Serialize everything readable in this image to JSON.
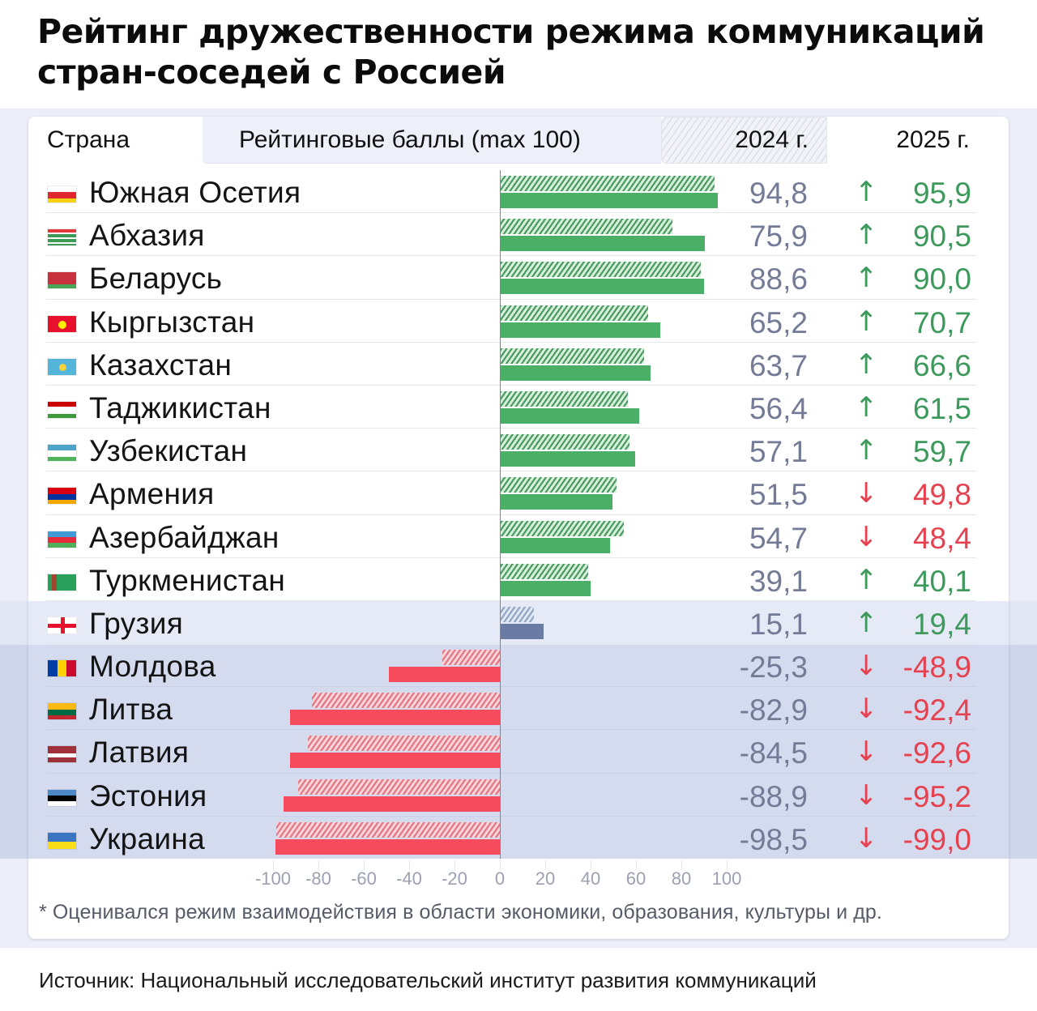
{
  "title": "Рейтинг дружественности режима коммуникаций стран-соседей с Россией",
  "header": {
    "country": "Страна",
    "scores": "Рейтинговые баллы (max 100)",
    "year_2024": "2024 г.",
    "year_2025": "2025 г."
  },
  "colors": {
    "positive": "#4caf68",
    "negative": "#f64b5c",
    "neutral": "#6a7ca3",
    "arrow_up": "#3d9a5c",
    "arrow_down": "#e5414f"
  },
  "rows": [
    {
      "country": "Южная Осетия",
      "flag": "south-ossetia",
      "v2024": "94,8",
      "v2025": "95,9",
      "dir": "↑"
    },
    {
      "country": "Абхазия",
      "flag": "abkhazia",
      "v2024": "75,9",
      "v2025": "90,5",
      "dir": "↑"
    },
    {
      "country": "Беларусь",
      "flag": "belarus",
      "v2024": "88,6",
      "v2025": "90,0",
      "dir": "↑"
    },
    {
      "country": "Кыргызстан",
      "flag": "kyrgyzstan",
      "v2024": "65,2",
      "v2025": "70,7",
      "dir": "↑"
    },
    {
      "country": "Казахстан",
      "flag": "kazakhstan",
      "v2024": "63,7",
      "v2025": "66,6",
      "dir": "↑"
    },
    {
      "country": "Таджикистан",
      "flag": "tajikistan",
      "v2024": "56,4",
      "v2025": "61,5",
      "dir": "↑"
    },
    {
      "country": "Узбекистан",
      "flag": "uzbekistan",
      "v2024": "57,1",
      "v2025": "59,7",
      "dir": "↑"
    },
    {
      "country": "Армения",
      "flag": "armenia",
      "v2024": "51,5",
      "v2025": "49,8",
      "dir": "↓"
    },
    {
      "country": "Азербайджан",
      "flag": "azerbaijan",
      "v2024": "54,7",
      "v2025": "48,4",
      "dir": "↓"
    },
    {
      "country": "Туркменистан",
      "flag": "turkmenistan",
      "v2024": "39,1",
      "v2025": "40,1",
      "dir": "↑"
    },
    {
      "country": "Грузия",
      "flag": "georgia",
      "v2024": "15,1",
      "v2025": "19,4",
      "dir": "↑"
    },
    {
      "country": "Молдова",
      "flag": "moldova",
      "v2024": "-25,3",
      "v2025": "-48,9",
      "dir": "↓"
    },
    {
      "country": "Литва",
      "flag": "lithuania",
      "v2024": "-82,9",
      "v2025": "-92,4",
      "dir": "↓"
    },
    {
      "country": "Латвия",
      "flag": "latvia",
      "v2024": "-84,5",
      "v2025": "-92,6",
      "dir": "↓"
    },
    {
      "country": "Эстония",
      "flag": "estonia",
      "v2024": "-88,9",
      "v2025": "-95,2",
      "dir": "↓"
    },
    {
      "country": "Украина",
      "flag": "ukraine",
      "v2024": "-98,5",
      "v2025": "-99,0",
      "dir": "↓"
    }
  ],
  "axis": {
    "ticks": [
      "-100",
      "-80",
      "-60",
      "-40",
      "-20",
      "0",
      "20",
      "40",
      "60",
      "80",
      "100"
    ]
  },
  "footnote": "* Оценивался режим взаимодействия в области экономики, образования, культуры и др.",
  "source": "Источник: Национальный исследовательский институт развития коммуникаций",
  "chart_data": {
    "type": "bar",
    "orientation": "horizontal",
    "title": "Рейтинг дружественности режима коммуникаций стран-соседей с Россией",
    "xlabel": "Рейтинговые баллы (max 100)",
    "ylabel": "Страна",
    "xlim": [
      -100,
      100
    ],
    "x_ticks": [
      -100,
      -80,
      -60,
      -40,
      -20,
      0,
      20,
      40,
      60,
      80,
      100
    ],
    "grid": false,
    "legend": [
      "2024 г. (штриховка)",
      "2025 г. (сплошная заливка)"
    ],
    "legend_position": "top (column headers)",
    "categories": [
      "Южная Осетия",
      "Абхазия",
      "Беларусь",
      "Кыргызстан",
      "Казахстан",
      "Таджикистан",
      "Узбекистан",
      "Армения",
      "Азербайджан",
      "Туркменистан",
      "Грузия",
      "Молдова",
      "Литва",
      "Латвия",
      "Эстония",
      "Украина"
    ],
    "series": [
      {
        "name": "2024 г.",
        "style": "hatched",
        "values": [
          94.8,
          75.9,
          88.6,
          65.2,
          63.7,
          56.4,
          57.1,
          51.5,
          54.7,
          39.1,
          15.1,
          -25.3,
          -82.9,
          -84.5,
          -88.9,
          -98.5
        ]
      },
      {
        "name": "2025 г.",
        "style": "solid",
        "values": [
          95.9,
          90.5,
          90.0,
          70.7,
          66.6,
          61.5,
          59.7,
          49.8,
          48.4,
          40.1,
          19.4,
          -48.9,
          -92.4,
          -92.6,
          -95.2,
          -99.0
        ]
      }
    ],
    "annotations": [
      "* Оценивался режим взаимодействия в области экономики, образования, культуры и др.",
      "Источник: Национальный исследовательский институт развития коммуникаций"
    ]
  }
}
